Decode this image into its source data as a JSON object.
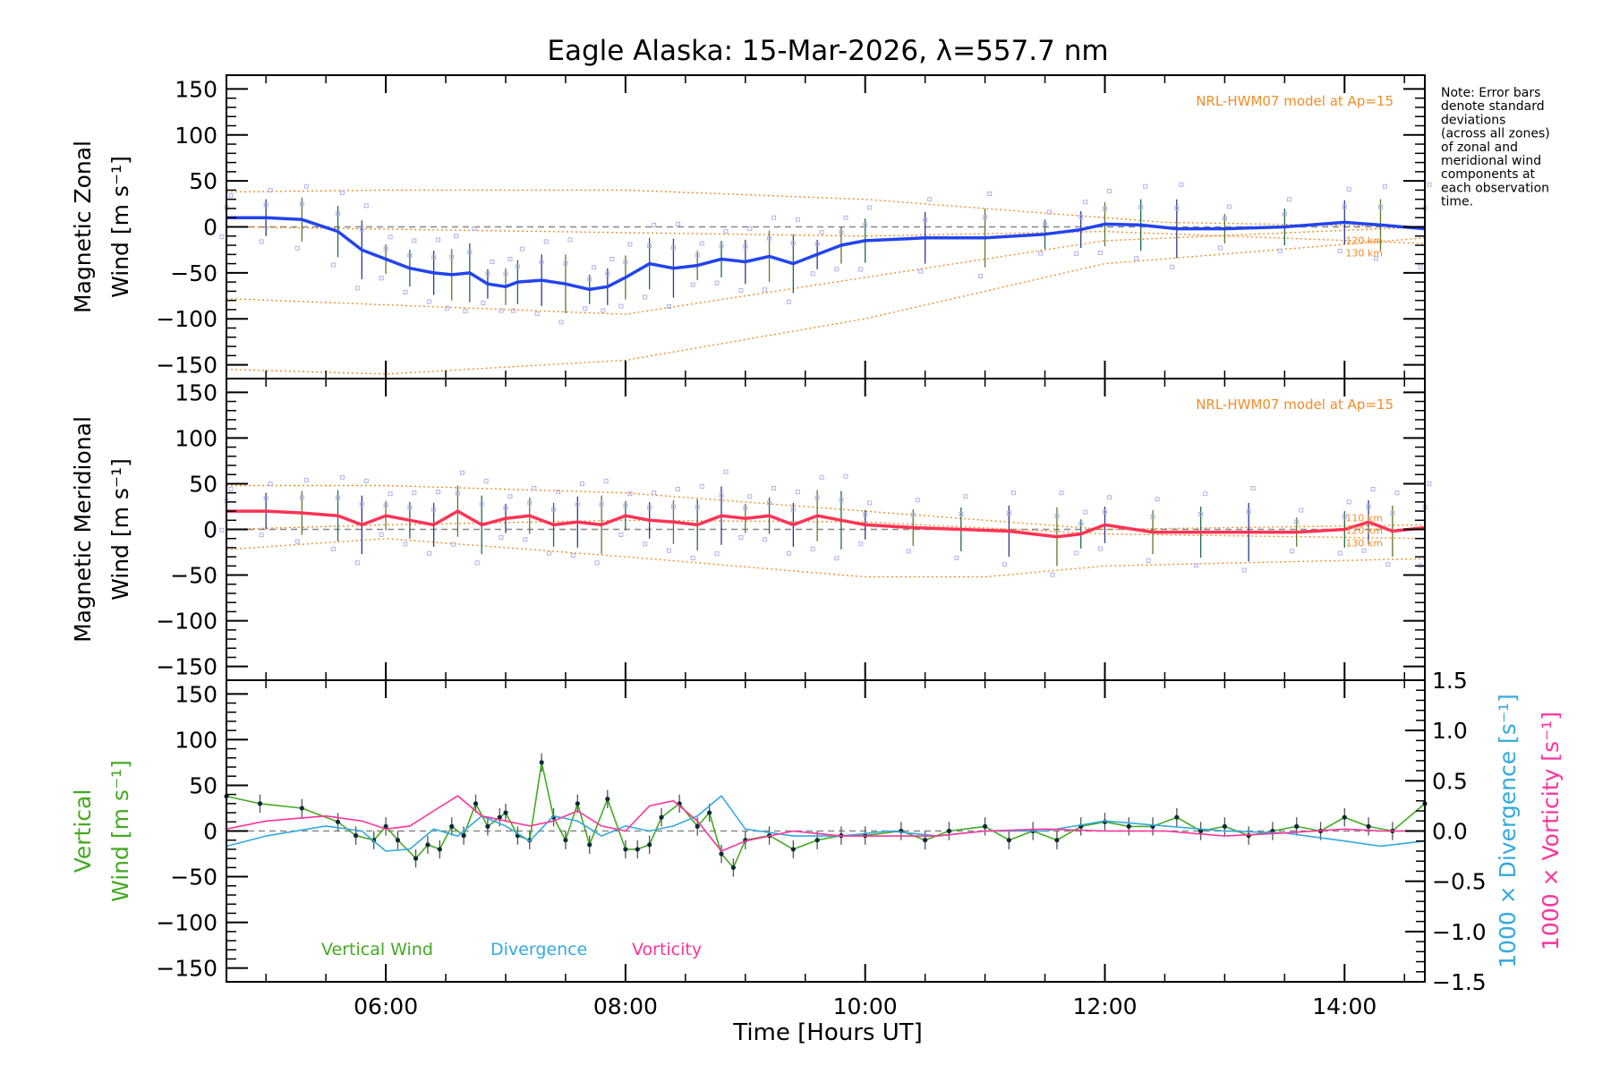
{
  "chart_data": {
    "type": "line",
    "title": "Eagle Alaska: 15-Mar-2026, λ=557.7 nm",
    "xlabel": "Time [Hours UT]",
    "xlim": [
      4.67,
      14.67
    ],
    "x_ticks": [
      6,
      8,
      10,
      12,
      14
    ],
    "x_tick_labels": [
      "06:00",
      "08:00",
      "10:00",
      "12:00",
      "14:00"
    ],
    "y_ticks": [
      -150,
      -100,
      -50,
      0,
      50,
      100,
      150
    ],
    "y_tick_labels": [
      "−150",
      "−100",
      "−50",
      "0",
      "50",
      "100",
      "150"
    ],
    "note_lines": [
      "Note: Error bars",
      "denote standard",
      "deviations",
      "(across all zones)",
      "of zonal and",
      "meridional wind",
      "components at",
      "each observation",
      "time."
    ],
    "colors": {
      "axis": "#000000",
      "zero_line": "#888888",
      "model": "#f28c28",
      "zonal": "#2244ee",
      "meridional": "#ff3355",
      "vertical": "#44aa22",
      "divergence": "#33aadd",
      "vorticity": "#ff3399",
      "points": "#b0b0ee"
    },
    "panels": [
      {
        "id": "zonal",
        "ylabel_line1": "Magnetic Zonal",
        "ylabel_line2": "Wind [m s⁻¹]",
        "ylim": [
          -165,
          165
        ],
        "model_label": "NRL-HWM07 model at Ap=15",
        "model_alt_labels": [
          "120 km",
          "130 km"
        ],
        "series": [
          {
            "name": "Magnetic Zonal Wind",
            "x": [
              4.67,
              5.0,
              5.3,
              5.6,
              5.8,
              6.0,
              6.2,
              6.4,
              6.55,
              6.7,
              6.85,
              7.0,
              7.1,
              7.3,
              7.5,
              7.7,
              7.85,
              8.0,
              8.2,
              8.4,
              8.6,
              8.8,
              9.0,
              9.2,
              9.4,
              9.6,
              9.8,
              10.0,
              10.5,
              11.0,
              11.5,
              11.8,
              12.0,
              12.3,
              12.6,
              13.0,
              13.5,
              14.0,
              14.3,
              14.67
            ],
            "values": [
              10,
              10,
              8,
              -5,
              -25,
              -35,
              -45,
              -50,
              -52,
              -50,
              -62,
              -65,
              -60,
              -58,
              -62,
              -68,
              -65,
              -55,
              -40,
              -45,
              -42,
              -35,
              -38,
              -32,
              -40,
              -30,
              -20,
              -15,
              -12,
              -12,
              -8,
              -3,
              3,
              2,
              -2,
              -2,
              0,
              5,
              2,
              -2
            ]
          }
        ],
        "model_curves": [
          {
            "name": "model upper envelope",
            "x": [
              4.67,
              6.0,
              8.0,
              10.0,
              11.5,
              12.5,
              14.67
            ],
            "values": [
              38,
              40,
              40,
              30,
              15,
              5,
              0
            ]
          },
          {
            "name": "model 110 km",
            "x": [
              4.67,
              8.0,
              10.0,
              12.0,
              14.67
            ],
            "values": [
              -78,
              -95,
              -55,
              -15,
              0
            ]
          },
          {
            "name": "model 120 km",
            "x": [
              4.67,
              6.0,
              8.0,
              10.0,
              12.0,
              14.67
            ],
            "values": [
              -155,
              -160,
              -145,
              -100,
              -40,
              -12
            ]
          },
          {
            "name": "model 130 km",
            "x": [
              4.67,
              10.0,
              12.0,
              14.67
            ],
            "values": [
              0,
              -10,
              -5,
              -18
            ]
          }
        ]
      },
      {
        "id": "meridional",
        "ylabel_line1": "Magnetic Meridional",
        "ylabel_line2": "Wind [m s⁻¹]",
        "ylim": [
          -165,
          165
        ],
        "model_label": "NRL-HWM07 model at Ap=15",
        "model_alt_labels": [
          "110 km",
          "120 km",
          "130 km"
        ],
        "series": [
          {
            "name": "Magnetic Meridional Wind",
            "x": [
              4.67,
              5.0,
              5.3,
              5.6,
              5.8,
              6.0,
              6.2,
              6.4,
              6.6,
              6.8,
              7.0,
              7.2,
              7.4,
              7.6,
              7.8,
              8.0,
              8.2,
              8.4,
              8.6,
              8.8,
              9.0,
              9.2,
              9.4,
              9.6,
              9.8,
              10.0,
              10.4,
              10.8,
              11.2,
              11.6,
              11.8,
              12.0,
              12.4,
              12.8,
              13.2,
              13.6,
              14.0,
              14.2,
              14.4,
              14.67
            ],
            "values": [
              20,
              20,
              18,
              15,
              5,
              15,
              10,
              5,
              20,
              5,
              12,
              15,
              5,
              8,
              5,
              15,
              10,
              8,
              5,
              15,
              12,
              15,
              5,
              15,
              10,
              5,
              2,
              0,
              -2,
              -8,
              -5,
              5,
              -3,
              -3,
              -3,
              -3,
              0,
              8,
              -2,
              2
            ]
          }
        ],
        "model_curves": [
          {
            "name": "model upper envelope",
            "x": [
              4.67,
              6.0,
              8.0,
              10.0,
              12.0,
              14.67
            ],
            "values": [
              48,
              48,
              40,
              20,
              0,
              5
            ]
          },
          {
            "name": "model mid",
            "x": [
              4.67,
              6.0,
              8.0,
              10.0,
              12.0,
              14.67
            ],
            "values": [
              0,
              5,
              10,
              8,
              -5,
              -10
            ]
          },
          {
            "name": "model lower",
            "x": [
              4.67,
              6.0,
              8.0,
              10.0,
              11.0,
              12.0,
              14.67
            ],
            "values": [
              -22,
              -10,
              -30,
              -52,
              -52,
              -40,
              -32
            ]
          }
        ]
      },
      {
        "id": "vertical",
        "ylabel_line1": "Vertical",
        "ylabel_line2": "Wind [m s⁻¹]",
        "ylim": [
          -165,
          165
        ],
        "right_axis": {
          "ylim": [
            -1.5,
            1.5
          ],
          "ticks": [
            -1.5,
            -1.0,
            -0.5,
            0.0,
            0.5,
            1.0,
            1.5
          ],
          "tick_labels": [
            "−1.5",
            "−1.0",
            "−0.5",
            "0.0",
            "0.5",
            "1.0",
            "1.5"
          ],
          "label_divergence": "1000 × Divergence [s⁻¹]",
          "label_vorticity": "1000 × Vorticity [s⁻¹]"
        },
        "legend": [
          "Vertical Wind",
          "Divergence",
          "Vorticity"
        ],
        "series": [
          {
            "name": "Vertical Wind",
            "axis": "left",
            "x": [
              4.67,
              4.95,
              5.3,
              5.6,
              5.75,
              5.9,
              6.0,
              6.1,
              6.25,
              6.35,
              6.45,
              6.55,
              6.65,
              6.75,
              6.85,
              6.95,
              7.0,
              7.1,
              7.2,
              7.3,
              7.4,
              7.5,
              7.6,
              7.7,
              7.85,
              8.0,
              8.1,
              8.2,
              8.3,
              8.45,
              8.6,
              8.7,
              8.8,
              8.9,
              9.0,
              9.2,
              9.4,
              9.6,
              9.8,
              10.0,
              10.3,
              10.5,
              10.7,
              11.0,
              11.2,
              11.4,
              11.6,
              11.8,
              12.0,
              12.2,
              12.4,
              12.6,
              12.8,
              13.0,
              13.2,
              13.4,
              13.6,
              13.8,
              14.0,
              14.2,
              14.4,
              14.67
            ],
            "values": [
              38,
              30,
              25,
              10,
              -5,
              -10,
              5,
              -10,
              -30,
              -15,
              -20,
              5,
              -5,
              30,
              5,
              15,
              20,
              -5,
              -10,
              75,
              15,
              -10,
              30,
              -15,
              35,
              -20,
              -20,
              -15,
              15,
              30,
              5,
              20,
              -25,
              -40,
              -10,
              -5,
              -20,
              -10,
              -5,
              -5,
              0,
              -10,
              0,
              5,
              -10,
              0,
              -10,
              5,
              10,
              5,
              5,
              15,
              0,
              5,
              -5,
              0,
              5,
              0,
              15,
              5,
              0,
              30
            ]
          },
          {
            "name": "Divergence",
            "axis": "right",
            "x": [
              4.67,
              5.0,
              5.5,
              5.8,
              6.0,
              6.2,
              6.4,
              6.6,
              6.8,
              7.0,
              7.2,
              7.4,
              7.6,
              7.8,
              8.0,
              8.2,
              8.4,
              8.6,
              8.8,
              9.0,
              9.4,
              9.8,
              10.2,
              10.6,
              11.0,
              11.5,
              12.0,
              12.5,
              13.0,
              13.5,
              14.0,
              14.3,
              14.67
            ],
            "values": [
              -0.15,
              -0.05,
              0.05,
              0.0,
              -0.2,
              -0.18,
              0.02,
              -0.05,
              0.15,
              0.05,
              -0.1,
              0.15,
              0.1,
              -0.05,
              0.05,
              0.0,
              0.05,
              0.15,
              0.35,
              0.02,
              -0.05,
              -0.05,
              0.0,
              -0.05,
              0.0,
              0.0,
              0.1,
              0.05,
              0.0,
              -0.02,
              -0.1,
              -0.15,
              -0.1
            ]
          },
          {
            "name": "Vorticity",
            "axis": "right",
            "x": [
              4.67,
              5.0,
              5.5,
              5.8,
              6.0,
              6.2,
              6.4,
              6.6,
              6.8,
              7.0,
              7.2,
              7.4,
              7.6,
              7.8,
              8.0,
              8.2,
              8.4,
              8.6,
              8.8,
              9.0,
              9.4,
              9.8,
              10.2,
              10.6,
              11.0,
              11.5,
              12.0,
              12.5,
              13.0,
              13.5,
              14.0,
              14.3,
              14.67
            ],
            "values": [
              0.02,
              0.1,
              0.15,
              0.1,
              0.02,
              0.05,
              0.2,
              0.35,
              0.15,
              0.1,
              0.05,
              0.1,
              0.2,
              0.05,
              0.0,
              0.25,
              0.3,
              0.1,
              -0.2,
              -0.1,
              0.0,
              -0.05,
              -0.05,
              -0.05,
              0.0,
              0.02,
              0.0,
              0.0,
              -0.05,
              -0.02,
              0.02,
              0.0,
              0.0
            ]
          }
        ]
      }
    ]
  }
}
